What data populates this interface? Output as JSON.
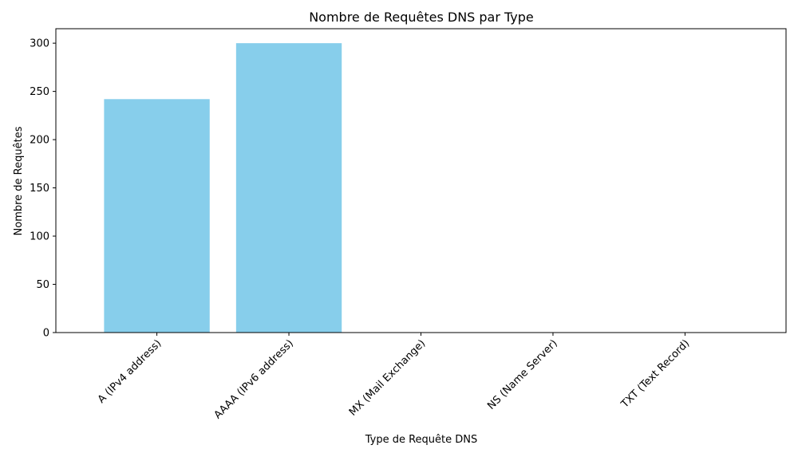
{
  "chart_data": {
    "type": "bar",
    "title": "Nombre de Requêtes DNS par Type",
    "xlabel": "Type de Requête DNS",
    "ylabel": "Nombre de Requêtes",
    "categories": [
      "A (IPv4 address)",
      "AAAA (IPv6 address)",
      "MX (Mail Exchange)",
      "NS (Name Server)",
      "TXT (Text Record)"
    ],
    "values": [
      242,
      300,
      0,
      0,
      0
    ],
    "ylim": [
      0,
      315
    ],
    "yticks": [
      0,
      50,
      100,
      150,
      200,
      250,
      300
    ],
    "bar_color": "#87ceeb",
    "grid": false,
    "x_tick_rotation": 45
  }
}
